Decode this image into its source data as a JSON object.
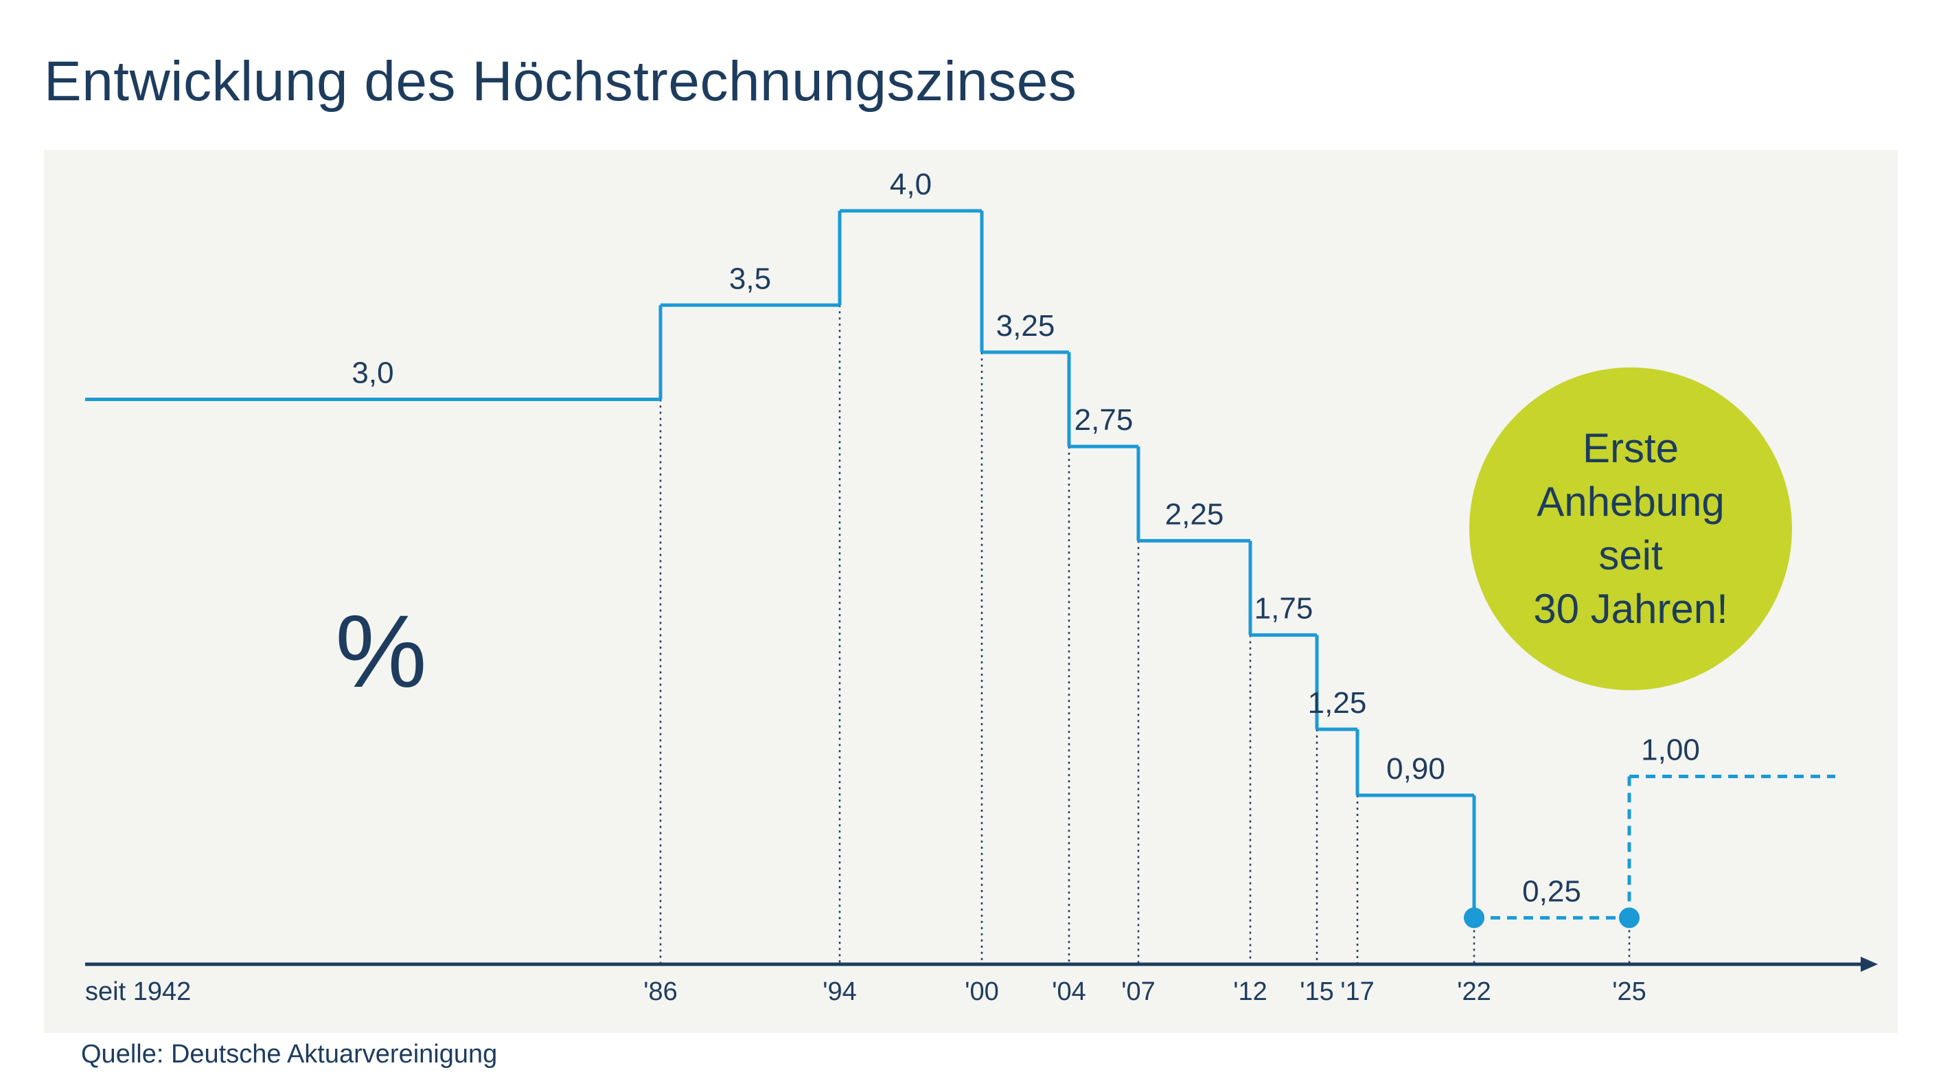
{
  "title": "Entwicklung des Höchstrechnungszinses",
  "source": "Quelle: Deutsche Aktuarvereinigung",
  "unit_symbol": "%",
  "badge": {
    "lines": [
      "Erste",
      "Anhebung",
      "seit",
      "30 Jahren!"
    ]
  },
  "colors": {
    "line": "#1b9ad6",
    "axis": "#1d3c5e",
    "panel": "#f4f4f1",
    "badge": "#c6d42b",
    "text": "#1d3c5e"
  },
  "chart_data": {
    "type": "line",
    "style": "step",
    "title": "Entwicklung des Höchstrechnungszinses",
    "ylabel": "%",
    "xlabel": "",
    "ylim": [
      0,
      4.2
    ],
    "x": [
      1942,
      1986,
      1994,
      2000,
      2004,
      2007,
      2012,
      2015,
      2017,
      2022,
      2025
    ],
    "tick_labels": [
      "seit 1942",
      "'86",
      "'94",
      "'00",
      "'04",
      "'07",
      "'12",
      "'15",
      "'17",
      "'22",
      "'25"
    ],
    "series": [
      {
        "name": "Höchstrechnungszins",
        "steps": [
          {
            "from": 1942,
            "to": 1986,
            "value": 3.0,
            "label": "3,0",
            "dashed": false
          },
          {
            "from": 1986,
            "to": 1994,
            "value": 3.5,
            "label": "3,5",
            "dashed": false
          },
          {
            "from": 1994,
            "to": 2000,
            "value": 4.0,
            "label": "4,0",
            "dashed": false
          },
          {
            "from": 2000,
            "to": 2004,
            "value": 3.25,
            "label": "3,25",
            "dashed": false
          },
          {
            "from": 2004,
            "to": 2007,
            "value": 2.75,
            "label": "2,75",
            "dashed": false
          },
          {
            "from": 2007,
            "to": 2012,
            "value": 2.25,
            "label": "2,25",
            "dashed": false
          },
          {
            "from": 2012,
            "to": 2015,
            "value": 1.75,
            "label": "1,75",
            "dashed": false
          },
          {
            "from": 2015,
            "to": 2017,
            "value": 1.25,
            "label": "1,25",
            "dashed": false
          },
          {
            "from": 2017,
            "to": 2022,
            "value": 0.9,
            "label": "0,90",
            "dashed": false
          },
          {
            "from": 2022,
            "to": 2025,
            "value": 0.25,
            "label": "0,25",
            "dashed": true
          },
          {
            "from": 2025,
            "to": 2032,
            "value": 1.0,
            "label": "1,00",
            "dashed": true
          }
        ]
      }
    ],
    "markers": [
      2022,
      2025
    ],
    "grid": false,
    "legend": "none"
  }
}
